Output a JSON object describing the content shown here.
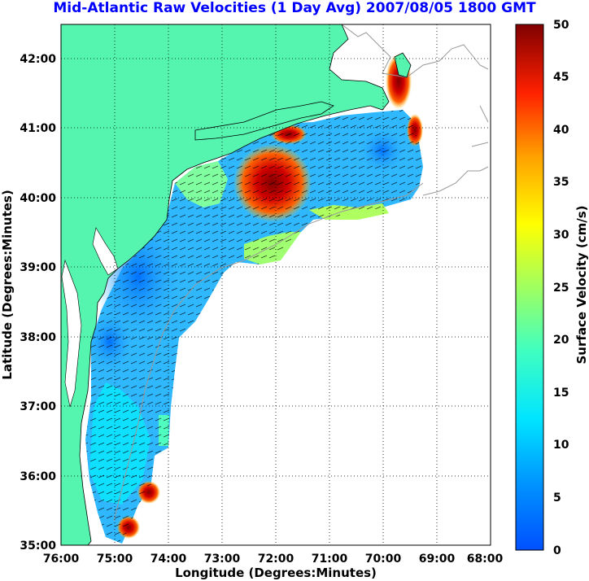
{
  "title": "Mid-Atlantic Raw Velocities (1 Day Avg) 2007/08/05 1800 GMT",
  "map": {
    "xlabel": "Longitude (Degrees:Minutes)",
    "ylabel": "Latitude (Degrees:Minutes)",
    "x_ticks": [
      "76:00",
      "75:00",
      "74:00",
      "73:00",
      "72:00",
      "71:00",
      "70:00",
      "69:00",
      "68:00"
    ],
    "y_ticks": [
      "42:00",
      "41:00",
      "40:00",
      "39:00",
      "38:00",
      "37:00",
      "36:00",
      "35:00"
    ],
    "lon_range": [
      -76,
      -68
    ],
    "lat_range": [
      35,
      42.5
    ],
    "grid": "dotted",
    "colors": {
      "land": "#55f5b0",
      "ocean": "#ffffff",
      "grid": "#000000",
      "bathymetry": "#999999"
    }
  },
  "colorbar": {
    "label": "Surface Velocity (cm/s)",
    "ticks": [
      "50",
      "45",
      "40",
      "35",
      "30",
      "25",
      "20",
      "15",
      "10",
      "5",
      "0"
    ],
    "range": [
      0,
      50
    ],
    "colormap": "jet"
  }
}
